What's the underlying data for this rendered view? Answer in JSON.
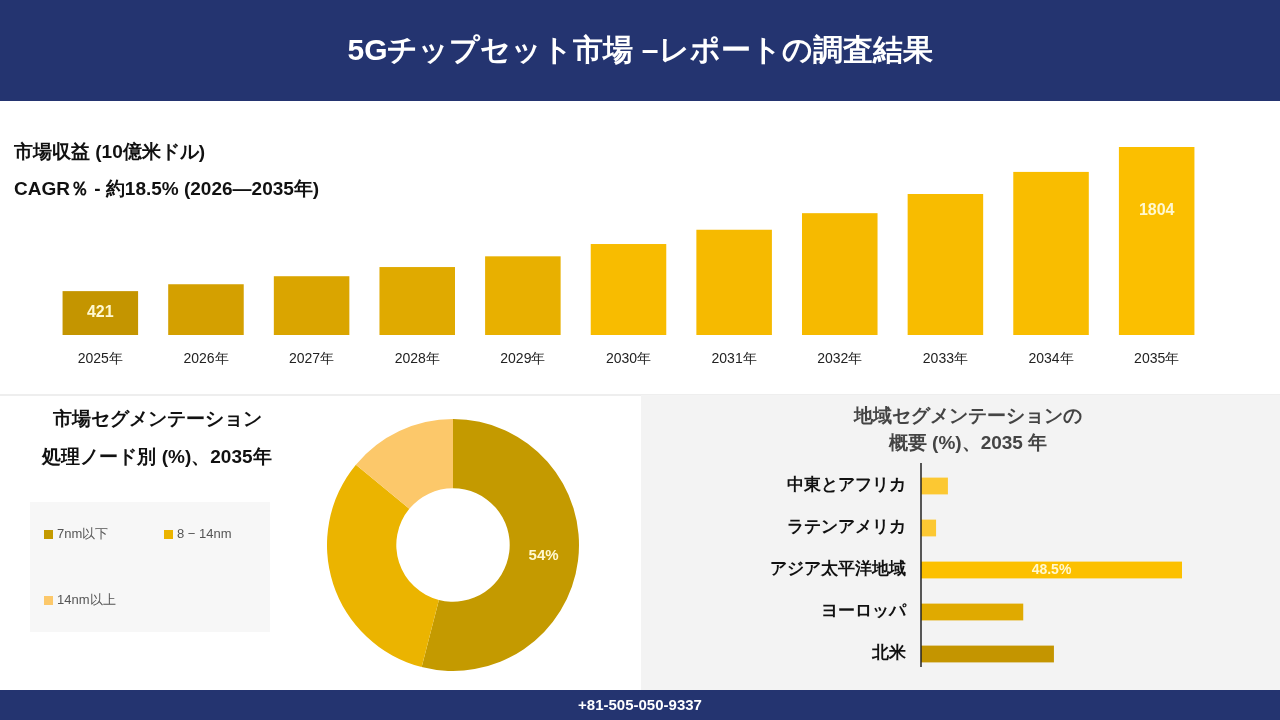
{
  "chart_data": [
    {
      "type": "bar",
      "title": "5Gチップセット市場 –レポートの調査結果",
      "subtitle": "市場収益 (10億米ドル)",
      "annotations": [
        "CAGR％ - 約18.5% (2026—2035年)",
        "+81-505-050-9337"
      ],
      "categories": [
        "2025年",
        "2026年",
        "2027年",
        "2028年",
        "2029年",
        "2030年",
        "2031年",
        "2032年",
        "2033年",
        "2034年",
        "2035年"
      ],
      "values": [
        421,
        487,
        564,
        652,
        755,
        873,
        1010,
        1169,
        1353,
        1565,
        1804
      ],
      "colors": [
        "#c49500",
        "#d4a000",
        "#daa500",
        "#e0aa00",
        "#e8b000",
        "#f8bc00",
        "#f6ba00",
        "#f6ba00",
        "#f8bc00",
        "#f9bd00",
        "#fbbf00"
      ],
      "value_labels": [
        "421",
        null,
        null,
        null,
        null,
        null,
        null,
        null,
        null,
        null,
        "1804"
      ],
      "tick_labels": "x"
    },
    {
      "type": "donut",
      "title": "市場セグメンテーション",
      "subtitle": "処理ノード別 (%)、2035年",
      "categories": [
        "7nm以下",
        "8 − 14nm",
        "14nm以上"
      ],
      "values": [
        54,
        32,
        14
      ],
      "colors": [
        "#c49a00",
        "#ebb400",
        "#fcc86a"
      ],
      "value_labels": [
        "54%",
        null,
        null
      ],
      "legend": "left"
    },
    {
      "type": "bar",
      "orientation": "horizontal",
      "title": "地域セグメンテーションの",
      "subtitle": "概要 (%)、2035 年",
      "categories": [
        "中東とアフリカ",
        "ラテンアメリカ",
        "アジア太平洋地域",
        "ヨーロッパ",
        "北米"
      ],
      "values": [
        5.0,
        2.8,
        48.5,
        19.0,
        24.7
      ],
      "colors": [
        "#fcc832",
        "#fcc832",
        "#fcc000",
        "#e0aa00",
        "#c49500"
      ],
      "value_labels": [
        null,
        null,
        "48.5%",
        null,
        null
      ],
      "tick_labels": "y"
    }
  ]
}
